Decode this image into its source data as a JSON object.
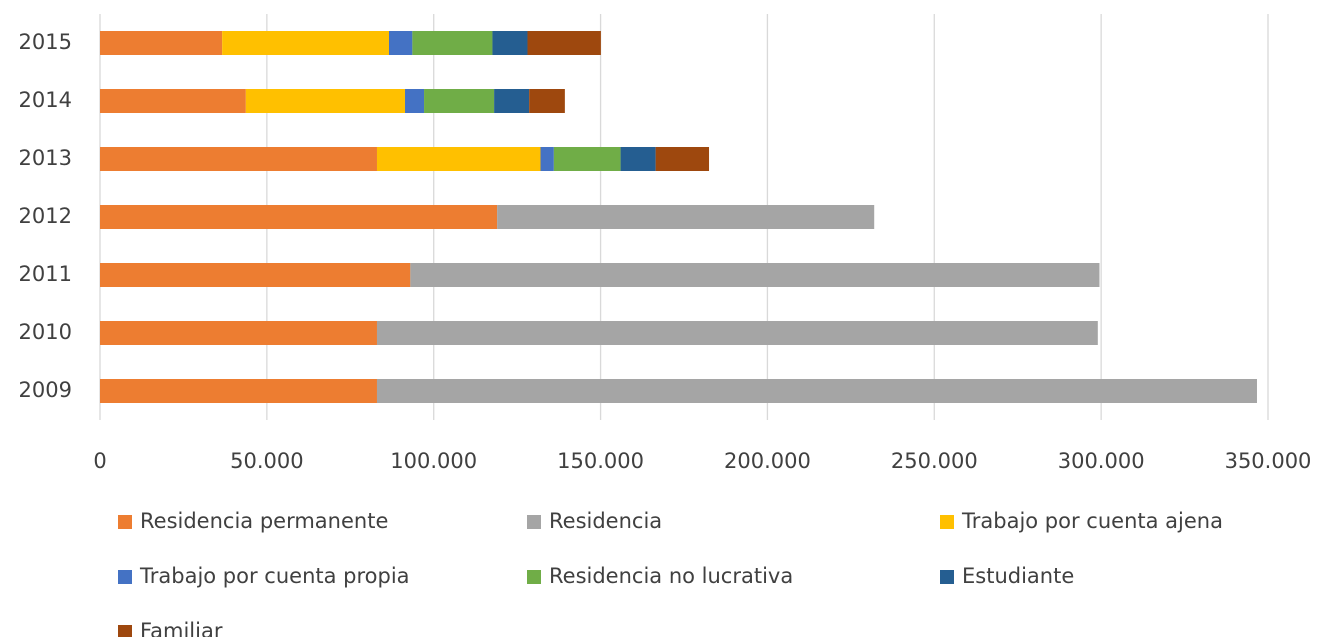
{
  "chart_data": {
    "type": "bar",
    "orientation": "horizontal",
    "stacked": true,
    "categories": [
      "2009",
      "2010",
      "2011",
      "2012",
      "2013",
      "2014",
      "2015"
    ],
    "series": [
      {
        "name": "Residencia permanente",
        "color": "#ed7d31",
        "values": [
          83000,
          83000,
          93000,
          119000,
          83000,
          43700,
          36600
        ]
      },
      {
        "name": "Residencia",
        "color": "#a5a5a5",
        "values": [
          263700,
          216000,
          206500,
          113000,
          null,
          null,
          null
        ]
      },
      {
        "name": "Trabajo por cuenta ajena",
        "color": "#ffc000",
        "values": [
          null,
          null,
          null,
          null,
          49000,
          47700,
          50000
        ]
      },
      {
        "name": "Trabajo por cuenta propia",
        "color": "#4472c4",
        "values": [
          null,
          null,
          null,
          null,
          4000,
          5700,
          7000
        ]
      },
      {
        "name": "Residencia no lucrativa",
        "color": "#70ad47",
        "values": [
          null,
          null,
          null,
          null,
          20000,
          21000,
          24000
        ]
      },
      {
        "name": "Estudiante",
        "color": "#255e91",
        "values": [
          null,
          null,
          null,
          null,
          10500,
          10500,
          10500
        ]
      },
      {
        "name": "Familiar",
        "color": "#9e480e",
        "values": [
          null,
          null,
          null,
          null,
          16000,
          10700,
          22000
        ]
      }
    ],
    "xlim": [
      0,
      350000
    ],
    "xticks": [
      0,
      {
        "value": 50000,
        "label": "50.000"
      },
      {
        "value": 100000,
        "label": "100.000"
      },
      {
        "value": 150000,
        "label": "150.000"
      },
      {
        "value": 200000,
        "label": "200.000"
      },
      {
        "value": 250000,
        "label": "250.000"
      },
      {
        "value": 300000,
        "label": "300.000"
      },
      {
        "value": 350000,
        "label": "350.000"
      }
    ],
    "grid": true,
    "legend": "bottom"
  }
}
